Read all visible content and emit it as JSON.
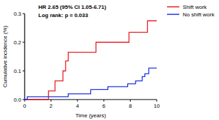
{
  "chart_data": {
    "type": "line",
    "line_style": "step",
    "x_label": "Time (years)",
    "y_label": "Cumulative incidence (%)",
    "annotations": [
      "HR 2.65 (95% CI 1.05-6.71)",
      "Log rank: p = 0.033"
    ],
    "legend": "upper right",
    "xlim": [
      0,
      10
    ],
    "ylim": [
      0,
      0.3
    ],
    "xticks": [
      0,
      2,
      4,
      6,
      8,
      10
    ],
    "yticks": [
      {
        "value": 0,
        "label": "0.0"
      },
      0.1,
      0.2,
      0.3
    ],
    "series": [
      {
        "name": "Shift work",
        "color": "#e8191e",
        "x": [
          0,
          1.8,
          2.3,
          2.9,
          3.1,
          3.3,
          5.4,
          7.9,
          9.3,
          10
        ],
        "values": [
          0,
          0.03,
          0.065,
          0.1,
          0.135,
          0.165,
          0.2,
          0.235,
          0.275,
          0.275
        ]
      },
      {
        "name": "No shift work",
        "color": "#1a2ee0",
        "x": [
          0,
          0.2,
          3.3,
          5.0,
          6.3,
          7.8,
          8.4,
          8.9,
          9.1,
          9.4,
          10
        ],
        "values": [
          0,
          0.01,
          0.02,
          0.035,
          0.045,
          0.055,
          0.065,
          0.08,
          0.09,
          0.11,
          0.11
        ]
      }
    ]
  }
}
